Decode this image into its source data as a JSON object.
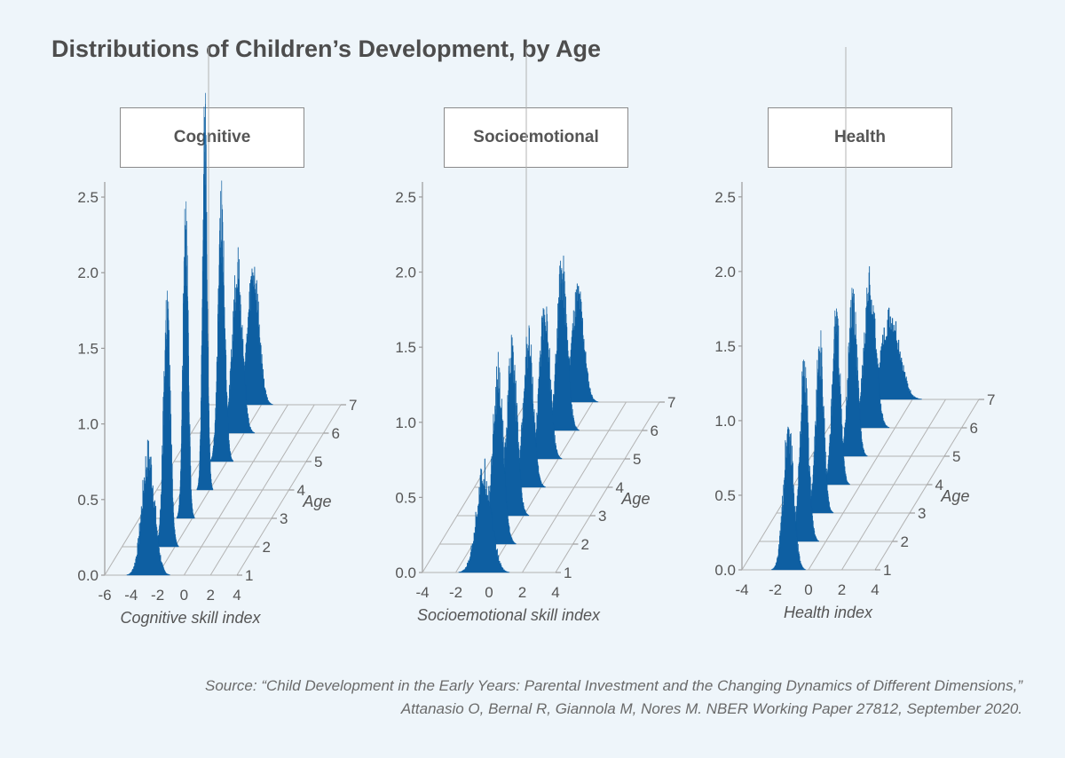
{
  "title": "Distributions of Children’s Development, by Age",
  "colors": {
    "bar": "#0e5fa2",
    "grid": "#b3b3b3",
    "axis": "#9a9a9a",
    "background": "#eef5fa"
  },
  "source": {
    "line1": "Source: “Child Development in the Early Years: Parental Investment and the Changing Dynamics of Different Dimensions,”",
    "line2": "Attanasio O, Bernal R, Giannola M, Nores M. NBER Working Paper 27812, September 2020."
  },
  "chart_data": [
    {
      "type": "area",
      "facet": "Cognitive",
      "xlabel": "Cognitive skill index",
      "ylabel": "",
      "depth_label": "Age",
      "xticks": [
        -6,
        -4,
        -2,
        0,
        2,
        4
      ],
      "xlim": [
        -6,
        4
      ],
      "yticks": [
        "0.0",
        "0.5",
        "1.0",
        "1.5",
        "2.0",
        "2.5"
      ],
      "ylim": [
        0,
        2.6
      ],
      "depth_ticks": [
        1,
        2,
        3,
        4,
        5,
        6,
        7
      ],
      "series": [
        {
          "name": "1",
          "mean": -2.7,
          "sd": 0.48,
          "peak": 0.78
        },
        {
          "name": "2",
          "mean": -2.6,
          "sd": 0.26,
          "peak": 1.55
        },
        {
          "name": "3",
          "mean": -2.5,
          "sd": 0.2,
          "peak": 1.97
        },
        {
          "name": "4",
          "mean": -2.35,
          "sd": 0.18,
          "peak": 2.28
        },
        {
          "name": "5",
          "mean": -2.4,
          "sd": 0.26,
          "peak": 1.6
        },
        {
          "name": "6",
          "mean": -2.5,
          "sd": 0.38,
          "peak": 1.05
        },
        {
          "name": "7",
          "mean": -2.6,
          "sd": 0.43,
          "peak": 0.86
        }
      ]
    },
    {
      "type": "area",
      "facet": "Socioemotional",
      "xlabel": "Socioemotional skill index",
      "ylabel": "",
      "depth_label": "Age",
      "xticks": [
        -4,
        -2,
        0,
        2,
        4
      ],
      "xlim": [
        -4,
        4
      ],
      "yticks": [
        "0.0",
        "0.5",
        "1.0",
        "1.5",
        "2.0",
        "2.5"
      ],
      "ylim": [
        0,
        2.6
      ],
      "depth_ticks": [
        1,
        2,
        3,
        4,
        5,
        6,
        7
      ],
      "series": [
        {
          "name": "1",
          "mean": -0.3,
          "sd": 0.45,
          "peak": 0.65
        },
        {
          "name": "2",
          "mean": -0.5,
          "sd": 0.32,
          "peak": 1.1
        },
        {
          "name": "3",
          "mean": -0.7,
          "sd": 0.3,
          "peak": 1.1
        },
        {
          "name": "4",
          "mean": -0.75,
          "sd": 0.3,
          "peak": 0.95
        },
        {
          "name": "5",
          "mean": -0.8,
          "sd": 0.3,
          "peak": 1.0
        },
        {
          "name": "6",
          "mean": -0.8,
          "sd": 0.3,
          "peak": 1.05
        },
        {
          "name": "7",
          "mean": -0.9,
          "sd": 0.36,
          "peak": 0.7
        }
      ]
    },
    {
      "type": "area",
      "facet": "Health",
      "xlabel": "Health index",
      "ylabel": "",
      "depth_label": "Age",
      "xticks": [
        -4,
        -2,
        0,
        2,
        4
      ],
      "xlim": [
        -4,
        4
      ],
      "yticks": [
        "0.0",
        "0.5",
        "1.0",
        "1.5",
        "2.0",
        "2.5"
      ],
      "ylim": [
        0,
        2.6
      ],
      "depth_ticks": [
        1,
        2,
        3,
        4,
        5,
        6,
        7
      ],
      "series": [
        {
          "name": "1",
          "mean": -1.2,
          "sd": 0.3,
          "peak": 0.95
        },
        {
          "name": "2",
          "mean": -1.3,
          "sd": 0.26,
          "peak": 1.1
        },
        {
          "name": "3",
          "mean": -1.4,
          "sd": 0.24,
          "peak": 1.08
        },
        {
          "name": "4",
          "mean": -1.45,
          "sd": 0.24,
          "peak": 1.07
        },
        {
          "name": "5",
          "mean": -1.5,
          "sd": 0.26,
          "peak": 1.05
        },
        {
          "name": "6",
          "mean": -1.5,
          "sd": 0.34,
          "peak": 0.95
        },
        {
          "name": "7",
          "mean": -1.3,
          "sd": 0.55,
          "peak": 0.55
        }
      ]
    }
  ]
}
